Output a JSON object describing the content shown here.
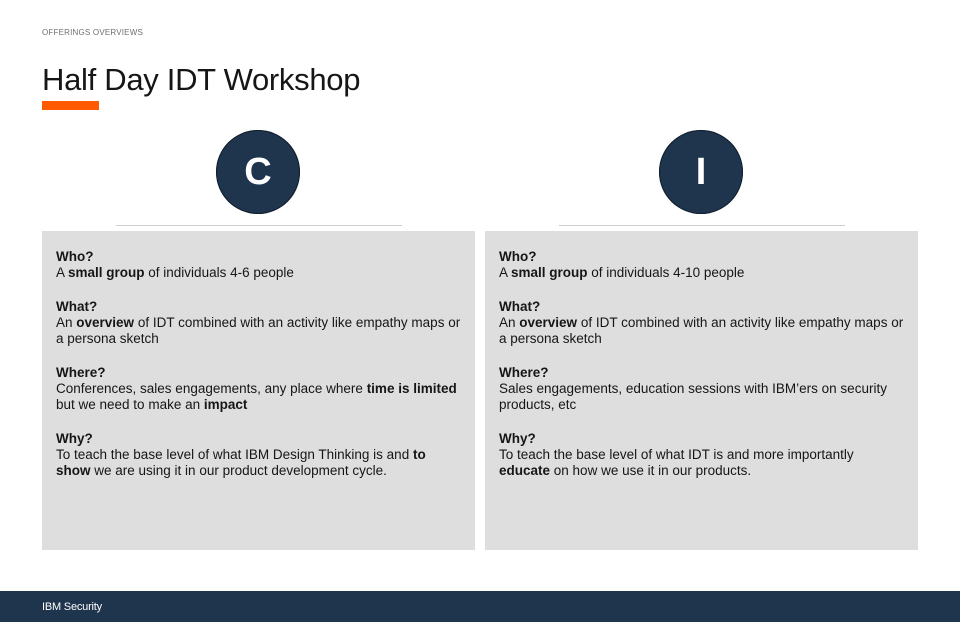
{
  "header": {
    "eyebrow": "OFFERINGS OVERVIEWS",
    "title": "Half Day IDT Workshop",
    "accent_color": "#ff5a00"
  },
  "columns": [
    {
      "letter": "C",
      "blocks": [
        {
          "heading": "Who?",
          "segments": [
            {
              "text": "A "
            },
            {
              "text": "small group",
              "bold": true
            },
            {
              "text": " of individuals 4-6 people"
            }
          ]
        },
        {
          "heading": "What?",
          "segments": [
            {
              "text": "An "
            },
            {
              "text": "overview",
              "bold": true
            },
            {
              "text": " of IDT combined with an activity like empathy maps or a persona sketch"
            }
          ]
        },
        {
          "heading": "Where?",
          "segments": [
            {
              "text": "Conferences, sales engagements, any place where "
            },
            {
              "text": "time is limited",
              "bold": true
            },
            {
              "text": " but we need to make an "
            },
            {
              "text": "impact",
              "bold": true
            }
          ]
        },
        {
          "heading": "Why?",
          "segments": [
            {
              "text": "To teach the base level of what IBM Design Thinking is and "
            },
            {
              "text": "to show",
              "bold": true
            },
            {
              "text": " we are using it in our product development cycle."
            }
          ]
        }
      ]
    },
    {
      "letter": "I",
      "blocks": [
        {
          "heading": "Who?",
          "segments": [
            {
              "text": "A "
            },
            {
              "text": "small group",
              "bold": true
            },
            {
              "text": " of individuals 4-10 people"
            }
          ]
        },
        {
          "heading": "What?",
          "segments": [
            {
              "text": "An "
            },
            {
              "text": "overview",
              "bold": true
            },
            {
              "text": " of IDT combined with an activity like empathy maps or a persona sketch"
            }
          ]
        },
        {
          "heading": "Where?",
          "segments": [
            {
              "text": "Sales engagements, education sessions with IBM’ers on security products, etc"
            }
          ]
        },
        {
          "heading": "Why?",
          "segments": [
            {
              "text": "To teach the base level of what IDT is and more importantly "
            },
            {
              "text": "educate",
              "bold": true
            },
            {
              "text": " on how we use it in our products."
            }
          ]
        }
      ]
    }
  ],
  "footer": {
    "brand": "IBM Security",
    "background_color": "#1f344d"
  }
}
